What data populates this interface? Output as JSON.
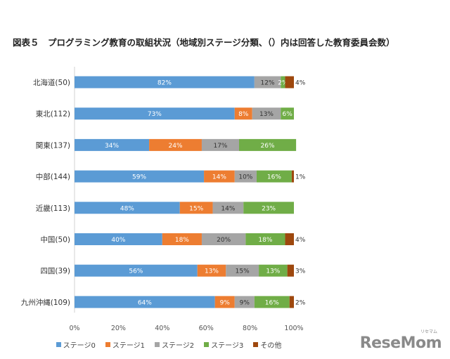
{
  "chart_data": {
    "type": "bar",
    "orientation": "horizontal",
    "stacked": true,
    "title": "図表５　プログラミング教育の取組状況（地域別ステージ分類、（）内は回答した教育委員会数）",
    "categories": [
      "北海道(50)",
      "東北(112)",
      "関東(137)",
      "中部(144)",
      "近畿(113)",
      "中国(50)",
      "四国(39)",
      "九州沖縄(109)"
    ],
    "series": [
      {
        "name": "ステージ0",
        "color": "#5b9bd5",
        "values": [
          82,
          73,
          34,
          59,
          48,
          40,
          56,
          64
        ],
        "labels": [
          "82%",
          "73%",
          "34%",
          "59%",
          "48%",
          "40%",
          "56%",
          "64%"
        ]
      },
      {
        "name": "ステージ1",
        "color": "#ed7d31",
        "values": [
          0,
          8,
          24,
          14,
          15,
          18,
          13,
          9
        ],
        "labels": [
          "",
          "8%",
          "24%",
          "14%",
          "15%",
          "18%",
          "13%",
          "9%"
        ]
      },
      {
        "name": "ステージ2",
        "color": "#a5a5a5",
        "values": [
          12,
          13,
          17,
          10,
          14,
          20,
          15,
          9
        ],
        "labels": [
          "12%",
          "13%",
          "17%",
          "10%",
          "14%",
          "20%",
          "15%",
          "9%"
        ]
      },
      {
        "name": "ステージ3",
        "color": "#70ad47",
        "values": [
          2,
          6,
          26,
          16,
          23,
          18,
          13,
          16
        ],
        "labels": [
          "2%",
          "6%",
          "26%",
          "16%",
          "23%",
          "18%",
          "13%",
          "16%"
        ]
      },
      {
        "name": "その他",
        "color": "#9e480e",
        "values": [
          4,
          0,
          0,
          1,
          0,
          4,
          3,
          2
        ],
        "labels": [
          "4%",
          "",
          "",
          "1%",
          "",
          "4%",
          "3%",
          "2%"
        ]
      }
    ],
    "xlim": [
      0,
      100
    ],
    "xticks": [
      "0%",
      "20%",
      "40%",
      "60%",
      "80%",
      "100%"
    ],
    "grid": false,
    "legend": "bottom"
  },
  "watermark": {
    "text": "ReseMom",
    "sub": "リセマム"
  }
}
